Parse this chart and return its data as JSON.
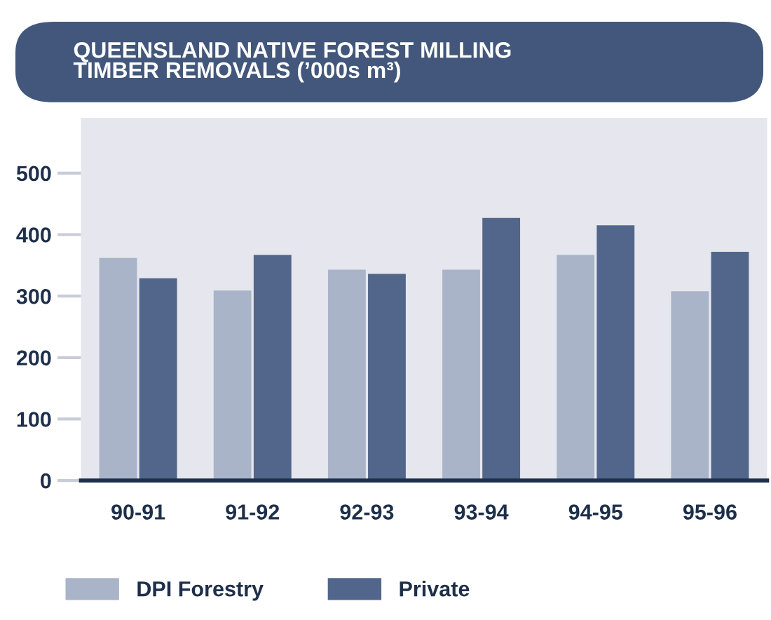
{
  "chart_data": {
    "type": "bar",
    "title": "QUEENSLAND NATIVE FOREST MILLING\nTIMBER REMOVALS (’000s m³)",
    "categories": [
      "90-91",
      "91-92",
      "92-93",
      "93-94",
      "94-95",
      "95-96"
    ],
    "series": [
      {
        "name": "DPI Forestry",
        "color": "#a9b4c9",
        "values": [
          362,
          309,
          343,
          343,
          367,
          308
        ]
      },
      {
        "name": "Private",
        "color": "#51668a",
        "values": [
          329,
          367,
          336,
          427,
          415,
          372
        ]
      }
    ],
    "ylim": [
      0,
      590
    ],
    "yticks": [
      0,
      100,
      200,
      300,
      400,
      500
    ],
    "grid": false,
    "legend": "bottom left"
  }
}
